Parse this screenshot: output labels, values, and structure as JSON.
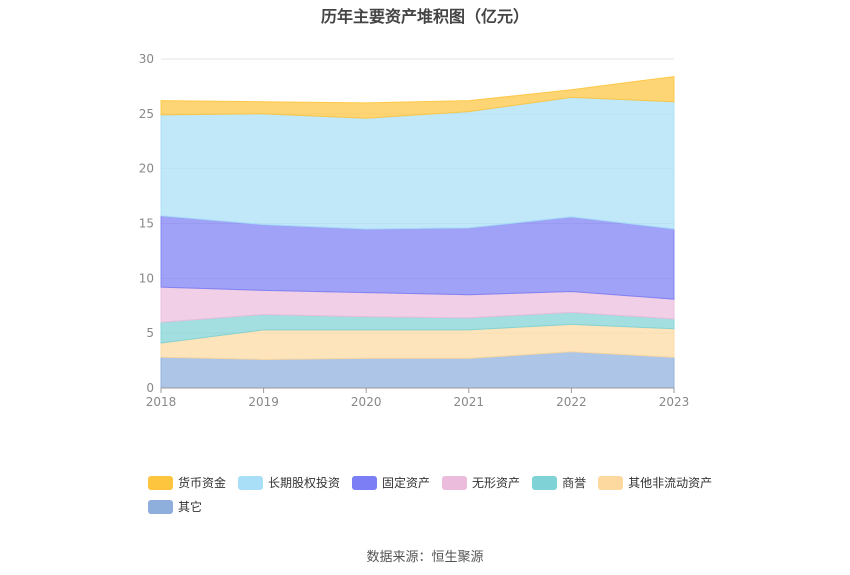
{
  "chart_data": {
    "type": "area",
    "stacked": true,
    "title": "历年主要资产堆积图（亿元）",
    "categories": [
      "2018",
      "2019",
      "2020",
      "2021",
      "2022",
      "2023"
    ],
    "ylim": [
      0,
      30
    ],
    "yticks": [
      0,
      5,
      10,
      15,
      20,
      25,
      30
    ],
    "grid": true,
    "legend_position": "bottom",
    "series": [
      {
        "name": "其它",
        "color": "#8eaedc",
        "values": [
          2.8,
          2.6,
          2.7,
          2.7,
          3.3,
          2.8
        ]
      },
      {
        "name": "其他非流动资产",
        "color": "#fdd9a0",
        "values": [
          1.3,
          2.7,
          2.6,
          2.6,
          2.5,
          2.6
        ]
      },
      {
        "name": "商誉",
        "color": "#7fd3d6",
        "values": [
          1.9,
          1.4,
          1.2,
          1.1,
          1.1,
          0.9
        ]
      },
      {
        "name": "无形资产",
        "color": "#ebbcdc",
        "values": [
          3.2,
          2.2,
          2.2,
          2.1,
          1.9,
          1.8
        ]
      },
      {
        "name": "固定资产",
        "color": "#7b7ef4",
        "values": [
          6.5,
          6.0,
          5.8,
          6.1,
          6.8,
          6.4
        ]
      },
      {
        "name": "长期股权投资",
        "color": "#a9dff7",
        "values": [
          9.2,
          10.1,
          10.1,
          10.6,
          10.9,
          11.6
        ]
      },
      {
        "name": "货币资金",
        "color": "#fdc53e",
        "values": [
          1.3,
          1.1,
          1.4,
          1.0,
          0.7,
          2.3
        ]
      }
    ],
    "legend_order": [
      "货币资金",
      "长期股权投资",
      "固定资产",
      "无形资产",
      "商誉",
      "其他非流动资产",
      "其它"
    ]
  },
  "source": "数据来源：恒生聚源"
}
